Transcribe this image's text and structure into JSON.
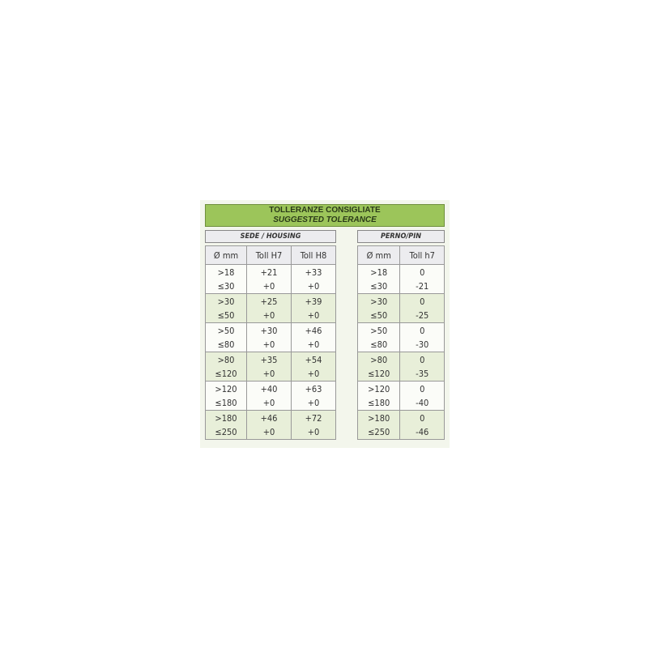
{
  "title": {
    "line1": "TOLLERANZE CONSIGLIATE",
    "line2": "SUGGESTED TOLERANCE"
  },
  "housing": {
    "label": "SEDE / HOUSING",
    "headers": [
      "Ø mm",
      "Toll H7",
      "Toll H8"
    ],
    "rows": [
      [
        ">18",
        "≤30",
        "+21",
        "+0",
        "+33",
        "+0"
      ],
      [
        ">30",
        "≤50",
        "+25",
        "+0",
        "+39",
        "+0"
      ],
      [
        ">50",
        "≤80",
        "+30",
        "+0",
        "+46",
        "+0"
      ],
      [
        ">80",
        "≤120",
        "+35",
        "+0",
        "+54",
        "+0"
      ],
      [
        ">120",
        "≤180",
        "+40",
        "+0",
        "+63",
        "+0"
      ],
      [
        ">180",
        "≤250",
        "+46",
        "+0",
        "+72",
        "+0"
      ]
    ]
  },
  "pin": {
    "label": "PERNO/PIN",
    "headers": [
      "Ø mm",
      "Toll h7"
    ],
    "rows": [
      [
        ">18",
        "≤30",
        "0",
        "-21"
      ],
      [
        ">30",
        "≤50",
        "0",
        "-25"
      ],
      [
        ">50",
        "≤80",
        "0",
        "-30"
      ],
      [
        ">80",
        "≤120",
        "0",
        "-35"
      ],
      [
        ">120",
        "≤180",
        "0",
        "-40"
      ],
      [
        ">180",
        "≤250",
        "0",
        "-46"
      ]
    ]
  },
  "colors": {
    "title_bar": "#9cc55a",
    "alt_row": "#e8efd9"
  }
}
